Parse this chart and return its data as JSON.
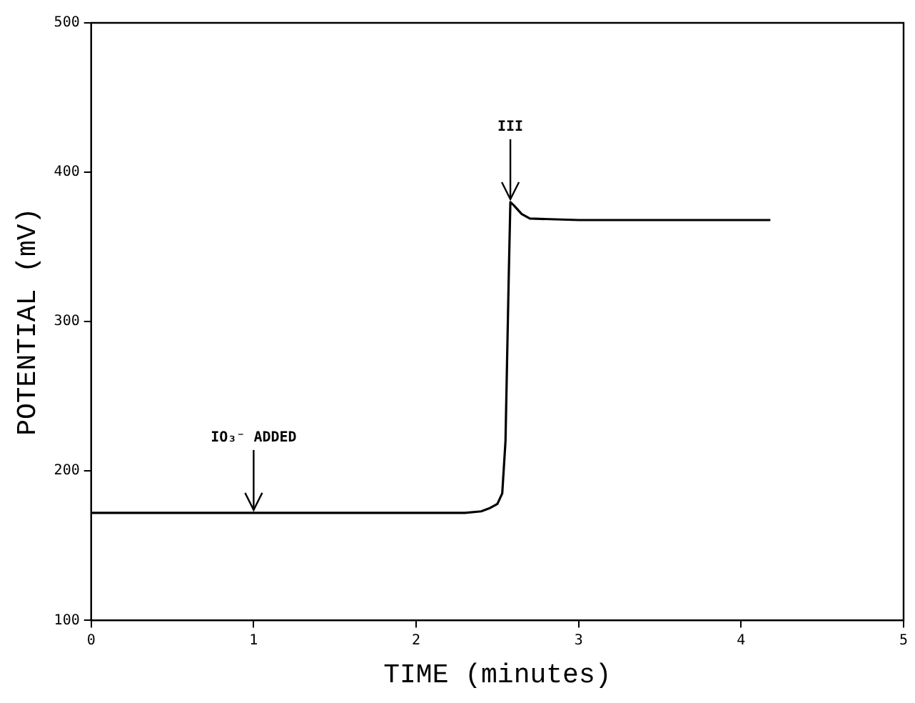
{
  "chart_data": {
    "type": "line",
    "xlabel": "TIME (minutes)",
    "ylabel": "POTENTIAL (mV)",
    "x": [
      0,
      0.5,
      1,
      1.5,
      2,
      2.3,
      2.4,
      2.45,
      2.5,
      2.53,
      2.55,
      2.57,
      2.58,
      2.6,
      2.65,
      2.7,
      3,
      3.5,
      4,
      4.18
    ],
    "series": [
      {
        "color": "#000000",
        "values": [
          172,
          172,
          172,
          172,
          172,
          172,
          173,
          175,
          178,
          185,
          220,
          330,
          380,
          378,
          372,
          369,
          368,
          368,
          368,
          368
        ]
      }
    ],
    "xlim": [
      0,
      5
    ],
    "xticks": [
      0,
      1,
      2,
      3,
      4,
      5
    ],
    "ylim": [
      100,
      500
    ],
    "yticks": [
      100,
      200,
      300,
      400,
      500
    ],
    "annotations": [
      {
        "text": "IO₃⁻ ADDED",
        "x": 1,
        "y": 172
      },
      {
        "text": "III",
        "x": 2.58,
        "y": 380
      }
    ],
    "grid": false,
    "legend": false,
    "marker": "none",
    "line_style": "solid"
  }
}
